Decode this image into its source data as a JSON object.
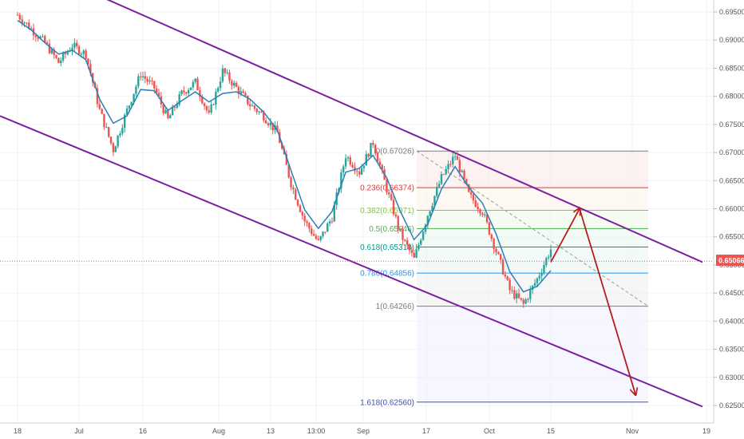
{
  "chart_data": {
    "type": "line",
    "title": "",
    "y_axis": {
      "ticks": [
        "0.69500",
        "0.69000",
        "0.68500",
        "0.68000",
        "0.67500",
        "0.67000",
        "0.66500",
        "0.66000",
        "0.65500",
        "0.65000",
        "0.64500",
        "0.64000",
        "0.63500",
        "0.63000",
        "0.62500"
      ],
      "range": [
        0.6242,
        0.6965
      ]
    },
    "x_axis": {
      "ticks": [
        "18",
        "Jul",
        "16",
        "Aug",
        "13",
        "13:00",
        "Sep",
        "17",
        "Oct",
        "15",
        "Nov",
        "19"
      ]
    },
    "current_price": "0.65066",
    "series": [
      {
        "kind": "price",
        "x": [
          "18",
          "",
          "",
          "",
          "",
          "Jul",
          "",
          "",
          "",
          "",
          "",
          "16",
          "",
          "",
          "",
          "",
          "",
          "Aug",
          "",
          "",
          "",
          "",
          "13",
          "",
          "13:00",
          "",
          "",
          "Sep",
          "",
          "",
          "",
          "17",
          "",
          "",
          "",
          "",
          "Oct",
          "",
          "",
          "15"
        ],
        "values": [
          0.6945,
          0.692,
          0.6895,
          0.686,
          0.689,
          0.6875,
          0.6775,
          0.6705,
          0.6775,
          0.684,
          0.6815,
          0.6758,
          0.6805,
          0.6825,
          0.6765,
          0.6845,
          0.6815,
          0.6785,
          0.6765,
          0.6735,
          0.6645,
          0.6578,
          0.654,
          0.6585,
          0.6695,
          0.6665,
          0.6718,
          0.6635,
          0.6555,
          0.651,
          0.659,
          0.6655,
          0.6695,
          0.6625,
          0.6595,
          0.6525,
          0.6455,
          0.643,
          0.6475,
          0.6528
        ]
      },
      {
        "kind": "moving-average",
        "x": [
          "18",
          "",
          "",
          "",
          "",
          "Jul",
          "",
          "",
          "",
          "",
          "",
          "16",
          "",
          "",
          "",
          "",
          "",
          "Aug",
          "",
          "",
          "",
          "",
          "13",
          "",
          "13:00",
          "",
          "",
          "Sep",
          "",
          "",
          "",
          "17",
          "",
          "",
          "",
          "",
          "Oct",
          "",
          "",
          "15"
        ],
        "values": [
          0.6935,
          0.6918,
          0.6895,
          0.6875,
          0.6882,
          0.6865,
          0.6795,
          0.6752,
          0.6765,
          0.6812,
          0.681,
          0.6775,
          0.6792,
          0.6808,
          0.679,
          0.6805,
          0.6808,
          0.6795,
          0.6772,
          0.674,
          0.6668,
          0.6598,
          0.6565,
          0.6595,
          0.6665,
          0.6672,
          0.6695,
          0.6655,
          0.6595,
          0.6545,
          0.6572,
          0.6635,
          0.6675,
          0.6638,
          0.661,
          0.6555,
          0.6488,
          0.6452,
          0.6462,
          0.649
        ]
      }
    ],
    "channel": {
      "upper": [
        [
          "27 Jun",
          0.6975
        ],
        [
          "19 Nov",
          0.6505
        ]
      ],
      "lower": [
        [
          "18 Jun",
          0.6765
        ],
        [
          "19 Nov",
          0.6248
        ]
      ]
    },
    "fibonacci": {
      "levels": [
        {
          "ratio": "0",
          "price": "0.67026",
          "value": 0.67026,
          "color": "#787b86"
        },
        {
          "ratio": "0.236",
          "price": "0.66374",
          "value": 0.66374,
          "color": "#e53935"
        },
        {
          "ratio": "0.382",
          "price": "0.65971",
          "value": 0.65971,
          "color": "#8bc34a"
        },
        {
          "ratio": "0.5",
          "price": "0.65646",
          "value": 0.65646,
          "color": "#4caf50"
        },
        {
          "ratio": "0.618",
          "price": "0.65318",
          "value": 0.65318,
          "color": "#009688"
        },
        {
          "ratio": "0.786",
          "price": "0.64856",
          "value": 0.64856,
          "color": "#2196f3"
        },
        {
          "ratio": "1",
          "price": "0.64266",
          "value": 0.64266,
          "color": "#787b86"
        },
        {
          "ratio": "1.618",
          "price": "0.62560",
          "value": 0.6256,
          "color": "#3f51b5"
        }
      ]
    },
    "projection": [
      [
        "15 Oct",
        0.6505
      ],
      [
        "22 Oct",
        0.66
      ],
      [
        "1 Nov",
        0.627
      ]
    ],
    "colors": {
      "candle_up": "#26a69a",
      "candle_down": "#ef5350",
      "moving_average": "#2a7fb8",
      "channel": "#7b1fa2",
      "projection": "#b71c1c",
      "price_tag": "#ef5350"
    }
  }
}
